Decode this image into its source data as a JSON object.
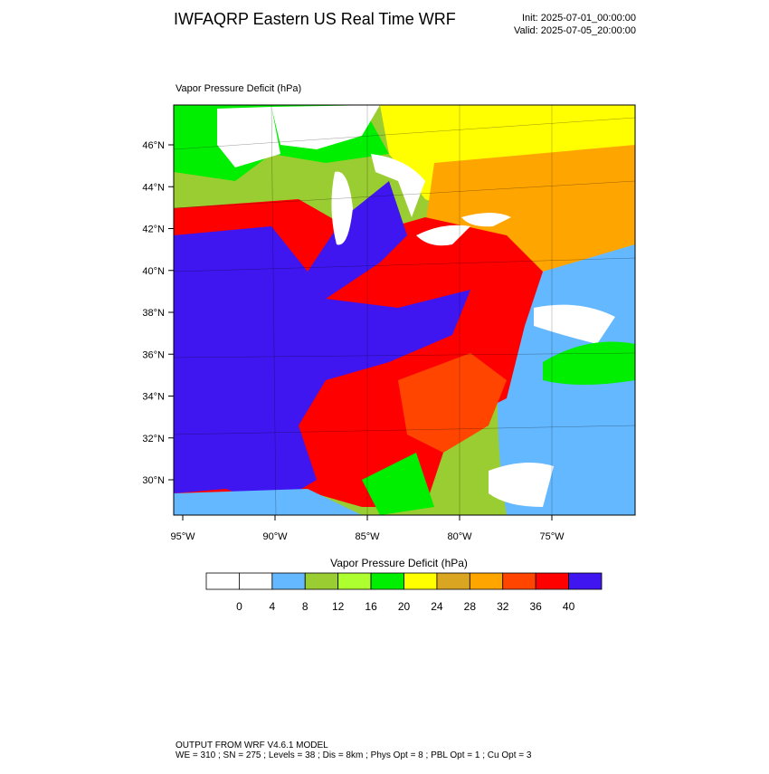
{
  "header": {
    "title": "IWFAQRP Eastern US Real Time WRF",
    "init": "Init: 2025-07-01_00:00:00",
    "valid": "Valid: 2025-07-05_20:00:00"
  },
  "map": {
    "title": "Vapor Pressure Deficit   (hPa)",
    "lat_labels": [
      "46°N",
      "44°N",
      "42°N",
      "40°N",
      "38°N",
      "36°N",
      "34°N",
      "32°N",
      "30°N"
    ],
    "lon_labels": [
      "95°W",
      "90°W",
      "85°W",
      "80°W",
      "75°W"
    ]
  },
  "colorbar": {
    "title": "Vapor Pressure Deficit   (hPa)",
    "colors": [
      "#ffffff",
      "#ffffff",
      "#63b8ff",
      "#9acd32",
      "#adff2f",
      "#00ee00",
      "#ffff00",
      "#daa520",
      "#ffa500",
      "#ff4500",
      "#ff0000",
      "#3f16f0"
    ],
    "labels": [
      0,
      4,
      8,
      12,
      16,
      20,
      24,
      28,
      32,
      36,
      40
    ]
  },
  "footer": {
    "line1": "OUTPUT FROM WRF V4.6.1 MODEL",
    "line2": "WE = 310 ; SN = 275 ; Levels = 38 ; Dis = 8km ; Phys Opt = 8 ; PBL Opt = 1 ; Cu Opt = 3"
  }
}
